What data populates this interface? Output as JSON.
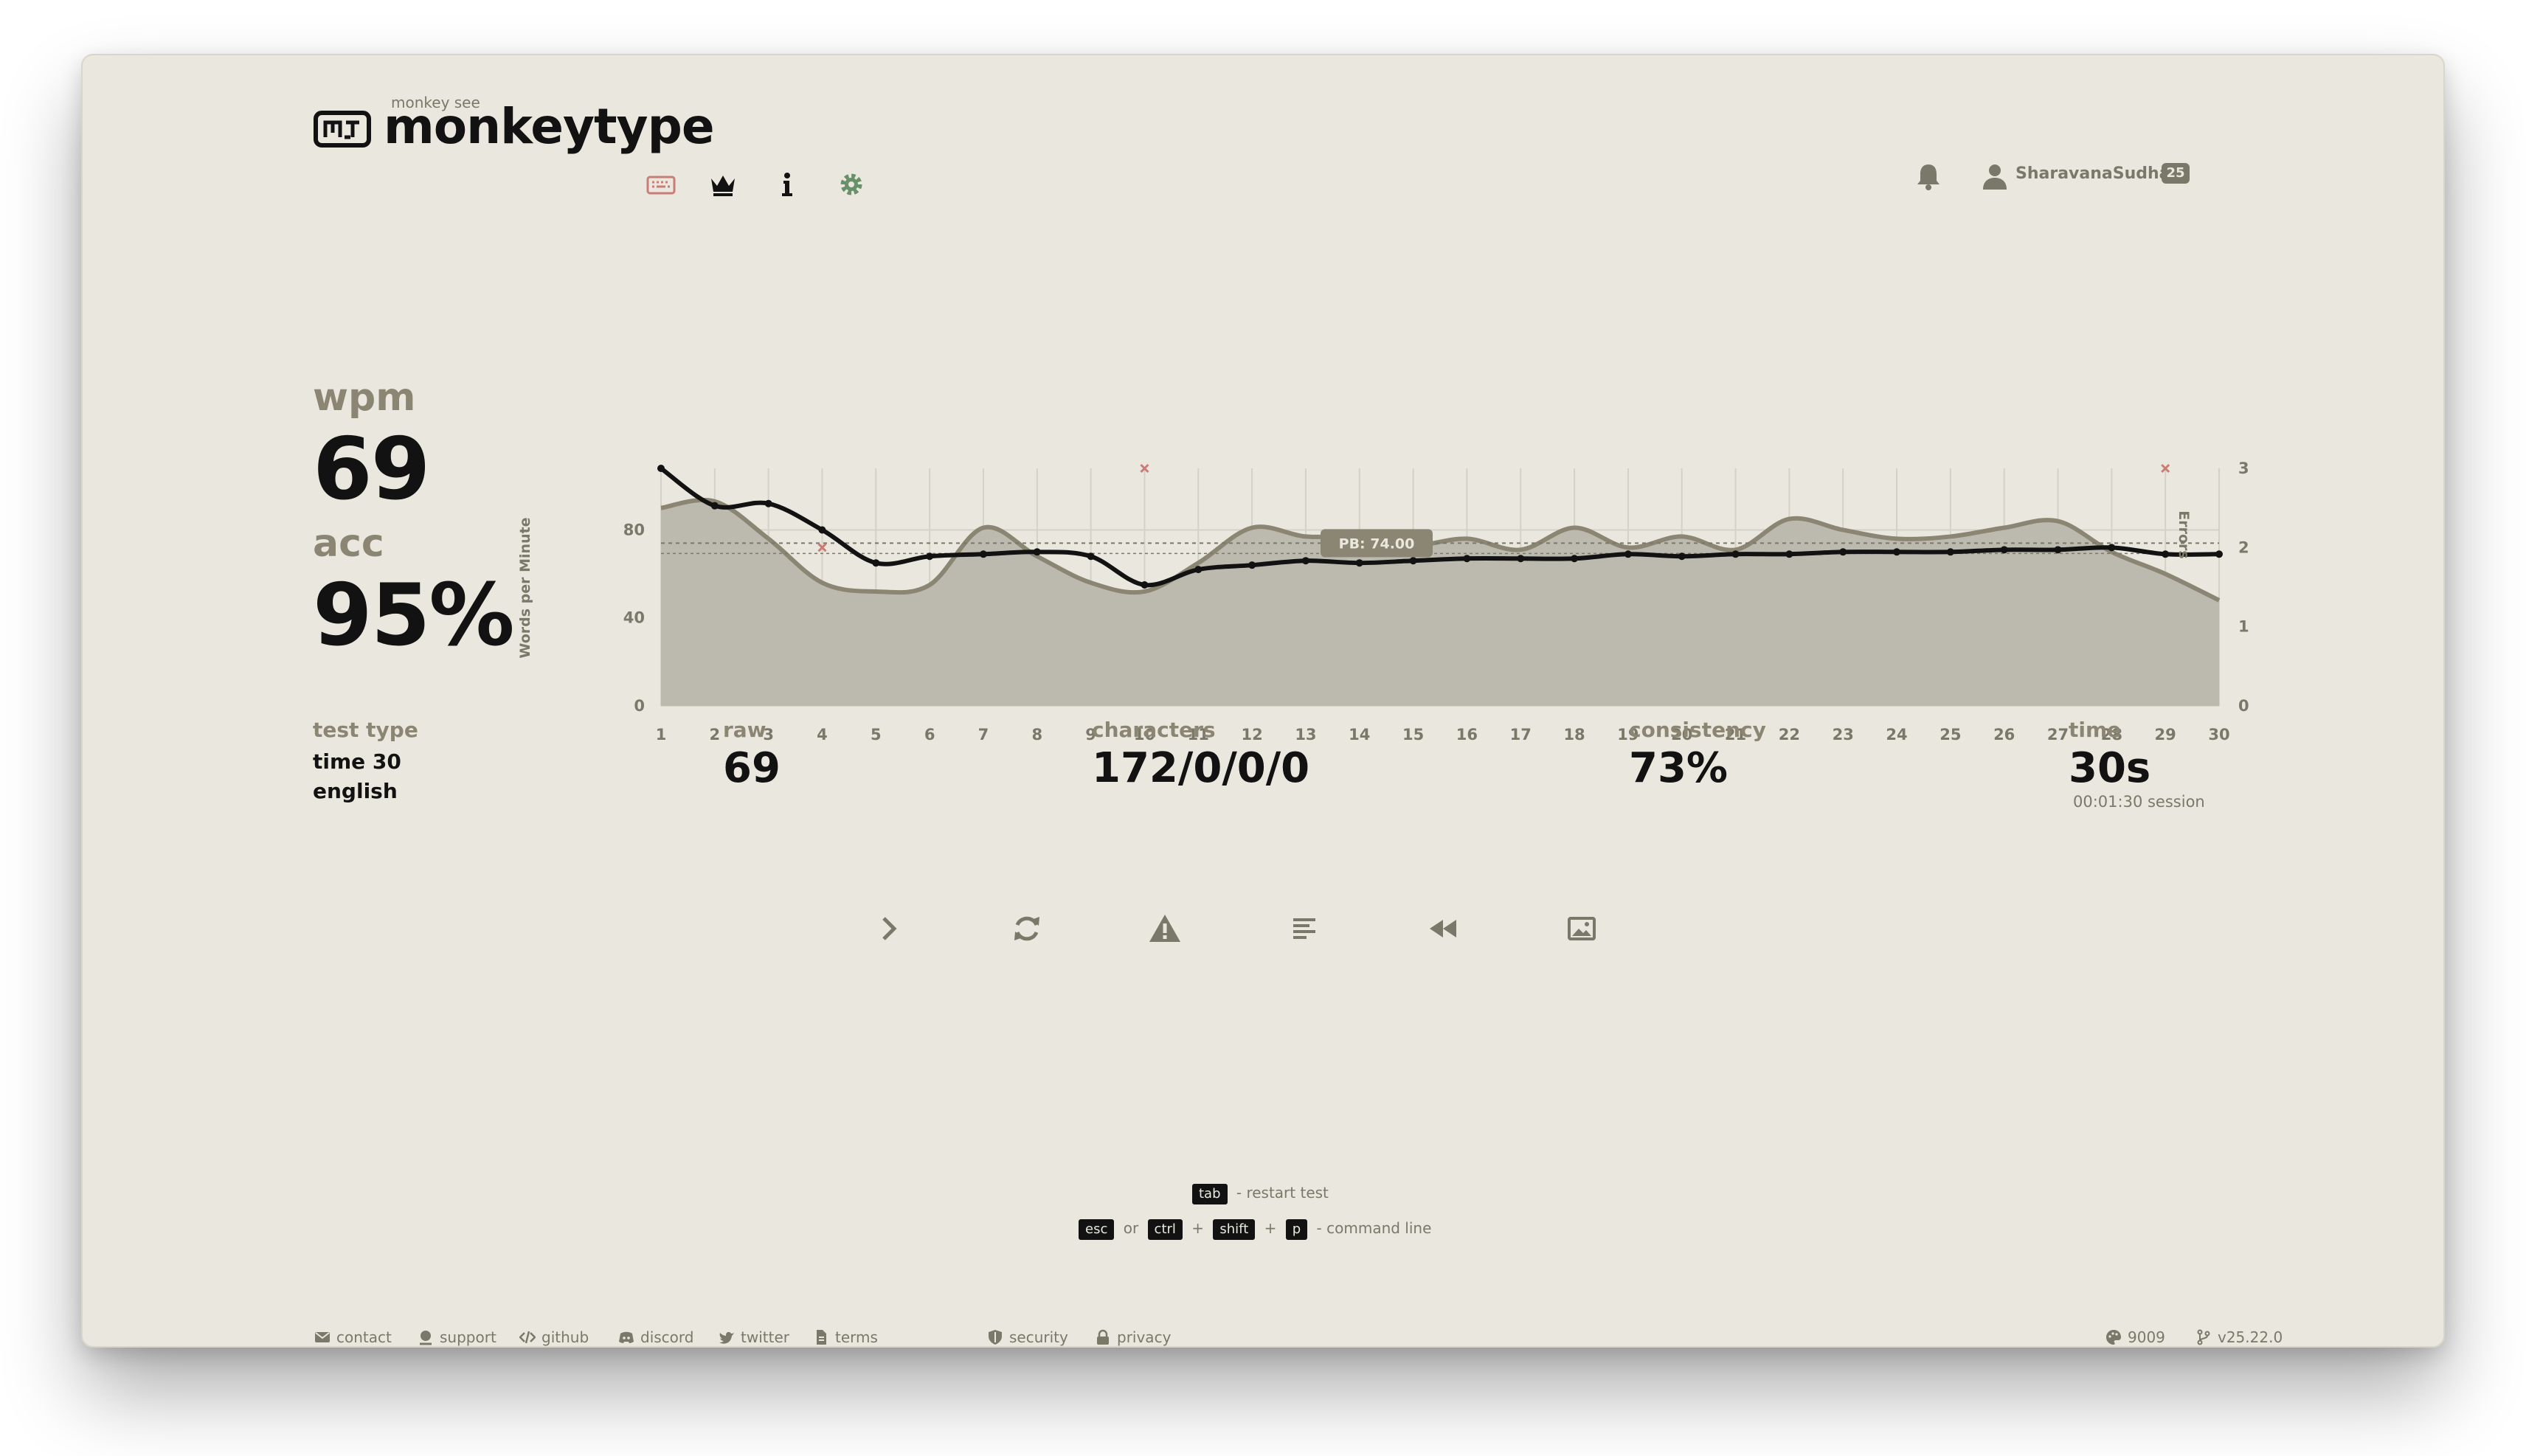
{
  "header": {
    "logo_small": "monkey see",
    "logo_text": "monkeytype",
    "user": {
      "name": "SharavanaSudhan",
      "level": "25"
    }
  },
  "result": {
    "wpm_label": "wpm",
    "wpm": "69",
    "acc_label": "acc",
    "acc": "95%",
    "test_type_label": "test type",
    "test_type": "time 30",
    "language": "english",
    "raw_label": "raw",
    "raw": "69",
    "characters_label": "characters",
    "characters": "172/0/0/0",
    "consistency_label": "consistency",
    "consistency": "73%",
    "time_label": "time",
    "time": "30s",
    "session": "00:01:30 session"
  },
  "hints": {
    "tab_key": "tab",
    "restart": "- restart test",
    "esc_key": "esc",
    "or": "or",
    "ctrl_key": "ctrl",
    "plus": "+",
    "shift_key": "shift",
    "p_key": "p",
    "command_line": "- command line"
  },
  "footer": {
    "links": [
      "contact",
      "support",
      "github",
      "discord",
      "twitter",
      "terms",
      "security",
      "privacy"
    ],
    "theme_count": "9009",
    "version": "v25.22.0"
  },
  "colors": {
    "bg": "#eae8de",
    "main": "#121212",
    "sub": "#8a8673",
    "error": "#c87e74",
    "accent": "#689069"
  },
  "chart_data": {
    "type": "line",
    "x": [
      1,
      2,
      3,
      4,
      5,
      6,
      7,
      8,
      9,
      10,
      11,
      12,
      13,
      14,
      15,
      16,
      17,
      18,
      19,
      20,
      21,
      22,
      23,
      24,
      25,
      26,
      27,
      28,
      29,
      30
    ],
    "series": [
      {
        "name": "wpm",
        "values": [
          108,
          91,
          92,
          80,
          65,
          68,
          69,
          70,
          68,
          55,
          62,
          64,
          66,
          65,
          66,
          67,
          67,
          67,
          69,
          68,
          69,
          69,
          70,
          70,
          70,
          71,
          71,
          72,
          69,
          69
        ]
      },
      {
        "name": "raw",
        "values": [
          90,
          93,
          76,
          56,
          52,
          55,
          81,
          68,
          56,
          52,
          65,
          81,
          77,
          77,
          73,
          76,
          71,
          81,
          72,
          77,
          71,
          85,
          80,
          76,
          77,
          81,
          84,
          70,
          60,
          48
        ]
      },
      {
        "name": "errors",
        "x": [
          4,
          10,
          29
        ],
        "values": [
          2,
          3,
          3
        ]
      }
    ],
    "pb": 74.0,
    "pb_label": "PB: 74.00",
    "ylabel": "Words per Minute",
    "y2label": "Errors",
    "y_ticks": [
      "0",
      "40",
      "80"
    ],
    "y2_ticks": [
      "0",
      "1",
      "2",
      "3"
    ],
    "ylim": [
      0,
      108
    ],
    "y2lim": [
      0,
      3
    ],
    "grid": true,
    "legend": "none"
  }
}
